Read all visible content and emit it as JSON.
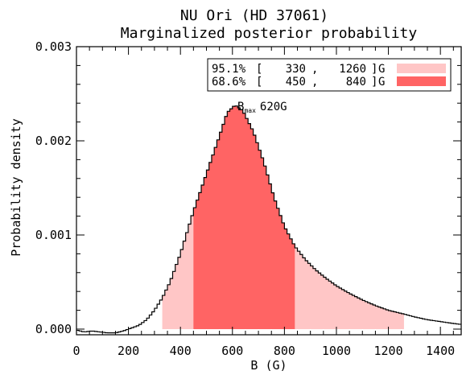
{
  "chart_data": {
    "type": "histogram",
    "title": "NU Ori (HD 37061)",
    "subtitle": "Marginalized posterior probability",
    "xlabel": "B (G)",
    "ylabel": "Probability density",
    "xlim": [
      0,
      1480
    ],
    "ylim": [
      -6e-05,
      0.003
    ],
    "x_ticks": [
      0,
      200,
      400,
      600,
      800,
      1000,
      1200,
      1400
    ],
    "x_tick_labels": [
      "0",
      "200",
      "400",
      "600",
      "800",
      "1000",
      "1200",
      "1400"
    ],
    "y_ticks": [
      0.0,
      0.001,
      0.002,
      0.003
    ],
    "y_tick_labels": [
      "0.000",
      "0.001",
      "0.002",
      "0.003"
    ],
    "bin_width": 10,
    "curve_points": [
      [
        0,
        -1e-05
      ],
      [
        30,
        -3e-05
      ],
      [
        60,
        -2e-05
      ],
      [
        90,
        -3e-05
      ],
      [
        120,
        -4e-05
      ],
      [
        150,
        -4e-05
      ],
      [
        180,
        -2e-05
      ],
      [
        210,
        1e-05
      ],
      [
        240,
        4e-05
      ],
      [
        270,
        0.0001
      ],
      [
        300,
        0.0002
      ],
      [
        330,
        0.00033
      ],
      [
        360,
        0.0005
      ],
      [
        400,
        0.0008
      ],
      [
        450,
        0.00125
      ],
      [
        500,
        0.00165
      ],
      [
        550,
        0.00205
      ],
      [
        580,
        0.0023
      ],
      [
        610,
        0.00238
      ],
      [
        640,
        0.00232
      ],
      [
        680,
        0.0021
      ],
      [
        720,
        0.00178
      ],
      [
        760,
        0.0014
      ],
      [
        800,
        0.00109
      ],
      [
        840,
        0.00088
      ],
      [
        880,
        0.00074
      ],
      [
        920,
        0.00063
      ],
      [
        960,
        0.00054
      ],
      [
        1000,
        0.00046
      ],
      [
        1050,
        0.00038
      ],
      [
        1100,
        0.00031
      ],
      [
        1150,
        0.00025
      ],
      [
        1200,
        0.0002
      ],
      [
        1260,
        0.00016
      ],
      [
        1300,
        0.00013
      ],
      [
        1350,
        0.0001
      ],
      [
        1400,
        8e-05
      ],
      [
        1450,
        6e-05
      ],
      [
        1480,
        5e-05
      ]
    ],
    "intervals": [
      {
        "label": "95.1%",
        "lo": 330,
        "lo_text": "330",
        "hi": 1260,
        "hi_text": "1260",
        "unit": "G",
        "color": "#ffc6c6"
      },
      {
        "label": "68.6%",
        "lo": 450,
        "lo_text": "450",
        "hi": 840,
        "hi_text": "840",
        "unit": "G",
        "color": "#ff6464"
      }
    ],
    "annotation": {
      "main": "B",
      "sub": "max",
      "value_text": "620G",
      "x": 620
    }
  }
}
